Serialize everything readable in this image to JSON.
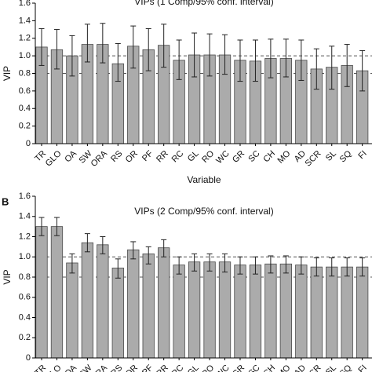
{
  "colors": {
    "bar_fill": "#ababab",
    "bar_stroke": "#4a4a4a",
    "error_bar": "#222222",
    "reference_line": "#555555",
    "axis": "#000000",
    "background": "#ffffff"
  },
  "chart_data": [
    {
      "panel_letter": "",
      "type": "bar",
      "title": "VIPs (1 Comp/95% conf. interval)",
      "xlabel": "Variable",
      "ylabel": "VIP",
      "ylim": [
        0,
        1.6
      ],
      "yticks": [
        "0",
        "0.2",
        "0.4",
        "0.6",
        "0.8",
        "1.0",
        "1.2",
        "1.4",
        "1.6"
      ],
      "reference_lines": [
        1.0,
        0.8
      ],
      "categories": [
        "TR",
        "GLO",
        "OA",
        "SW",
        "ORA",
        "RS",
        "OR",
        "PF",
        "RR",
        "RC",
        "GL",
        "RO",
        "WC",
        "GR",
        "SC",
        "CH",
        "MO",
        "AD",
        "SCR",
        "SL",
        "SQ",
        "FI"
      ],
      "values": [
        1.1,
        1.07,
        1.0,
        1.13,
        1.13,
        0.91,
        1.11,
        1.07,
        1.12,
        0.95,
        1.01,
        1.01,
        1.01,
        0.95,
        0.94,
        0.97,
        0.97,
        0.95,
        0.85,
        0.87,
        0.89,
        0.83
      ],
      "error_low": [
        0.89,
        0.85,
        0.77,
        0.93,
        0.92,
        0.71,
        0.86,
        0.83,
        0.87,
        0.73,
        0.76,
        0.77,
        0.79,
        0.71,
        0.71,
        0.75,
        0.76,
        0.72,
        0.62,
        0.62,
        0.65,
        0.6
      ],
      "error_high": [
        1.31,
        1.3,
        1.23,
        1.36,
        1.37,
        1.14,
        1.34,
        1.31,
        1.36,
        1.18,
        1.26,
        1.25,
        1.24,
        1.18,
        1.18,
        1.19,
        1.19,
        1.18,
        1.08,
        1.11,
        1.13,
        1.06
      ],
      "grid": false,
      "legend": "none"
    },
    {
      "panel_letter": "B",
      "type": "bar",
      "title": "VIPs (2 Comp/95% conf. interval)",
      "xlabel": "",
      "ylabel": "VIP",
      "ylim": [
        0,
        1.6
      ],
      "yticks": [
        "0",
        "0.2",
        "0.4",
        "0.6",
        "0.8",
        "1.0",
        "1.2",
        "1.4",
        "1.6"
      ],
      "reference_lines": [
        1.0,
        0.8
      ],
      "categories": [
        "TR",
        "GLO",
        "OA",
        "SW",
        "ORA",
        "RS",
        "OR",
        "PF",
        "RR",
        "RC",
        "GL",
        "RO",
        "WC",
        "GR",
        "SC",
        "CH",
        "MO",
        "AD",
        "SCR",
        "SL",
        "SQ",
        "FI"
      ],
      "category_labels_visible": [
        "TR",
        "LO",
        "OA",
        "SW",
        "RA",
        "RS",
        "OR",
        "PF",
        "RR",
        "RC",
        "GL",
        "RO",
        "WC",
        "GR",
        "SC",
        "CH",
        "MO",
        "AD",
        "SCR",
        "SL",
        "SQ",
        "FI"
      ],
      "values": [
        1.3,
        1.3,
        0.94,
        1.14,
        1.12,
        0.89,
        1.07,
        1.03,
        1.09,
        0.92,
        0.95,
        0.95,
        0.95,
        0.92,
        0.92,
        0.93,
        0.93,
        0.92,
        0.9,
        0.9,
        0.9,
        0.9
      ],
      "error_low": [
        1.21,
        1.21,
        0.84,
        1.05,
        1.03,
        0.79,
        0.98,
        0.93,
        1.0,
        0.83,
        0.86,
        0.86,
        0.85,
        0.83,
        0.83,
        0.84,
        0.84,
        0.83,
        0.81,
        0.81,
        0.81,
        0.81
      ],
      "error_high": [
        1.39,
        1.39,
        1.03,
        1.23,
        1.2,
        0.98,
        1.15,
        1.1,
        1.17,
        1.0,
        1.03,
        1.03,
        1.03,
        1.0,
        1.0,
        1.01,
        1.01,
        1.0,
        0.99,
        0.99,
        0.99,
        0.99
      ],
      "grid": false,
      "legend": "none"
    }
  ]
}
